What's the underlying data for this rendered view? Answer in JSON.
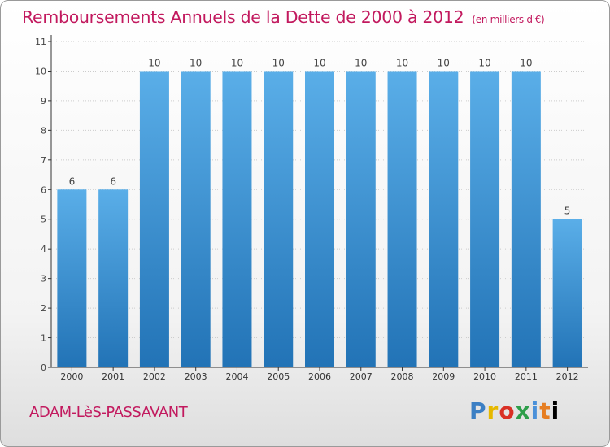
{
  "header": {
    "title": "Remboursements Annuels de la Dette de 2000 à 2012",
    "unit": "(en milliers d'€)"
  },
  "footer": {
    "town": "ADAM-LèS-PASSAVANT",
    "logo_letters": [
      "P",
      "r",
      "o",
      "x",
      "i",
      "t",
      "i"
    ]
  },
  "colors": {
    "title": "#c2195e",
    "bar_top": "#5aaee8",
    "bar_bottom": "#2273b6",
    "axis": "#333333",
    "grid": "#cccccc"
  },
  "chart_data": {
    "type": "bar",
    "categories": [
      "2000",
      "2001",
      "2002",
      "2003",
      "2004",
      "2005",
      "2006",
      "2007",
      "2008",
      "2009",
      "2010",
      "2011",
      "2012"
    ],
    "values": [
      6,
      6,
      10,
      10,
      10,
      10,
      10,
      10,
      10,
      10,
      10,
      10,
      5
    ],
    "title": "Remboursements Annuels de la Dette de 2000 à 2012",
    "ylim": [
      0,
      11
    ],
    "yticks": [
      0,
      1,
      2,
      3,
      4,
      5,
      6,
      7,
      8,
      9,
      10,
      11
    ],
    "grid": true,
    "data_labels": true
  }
}
